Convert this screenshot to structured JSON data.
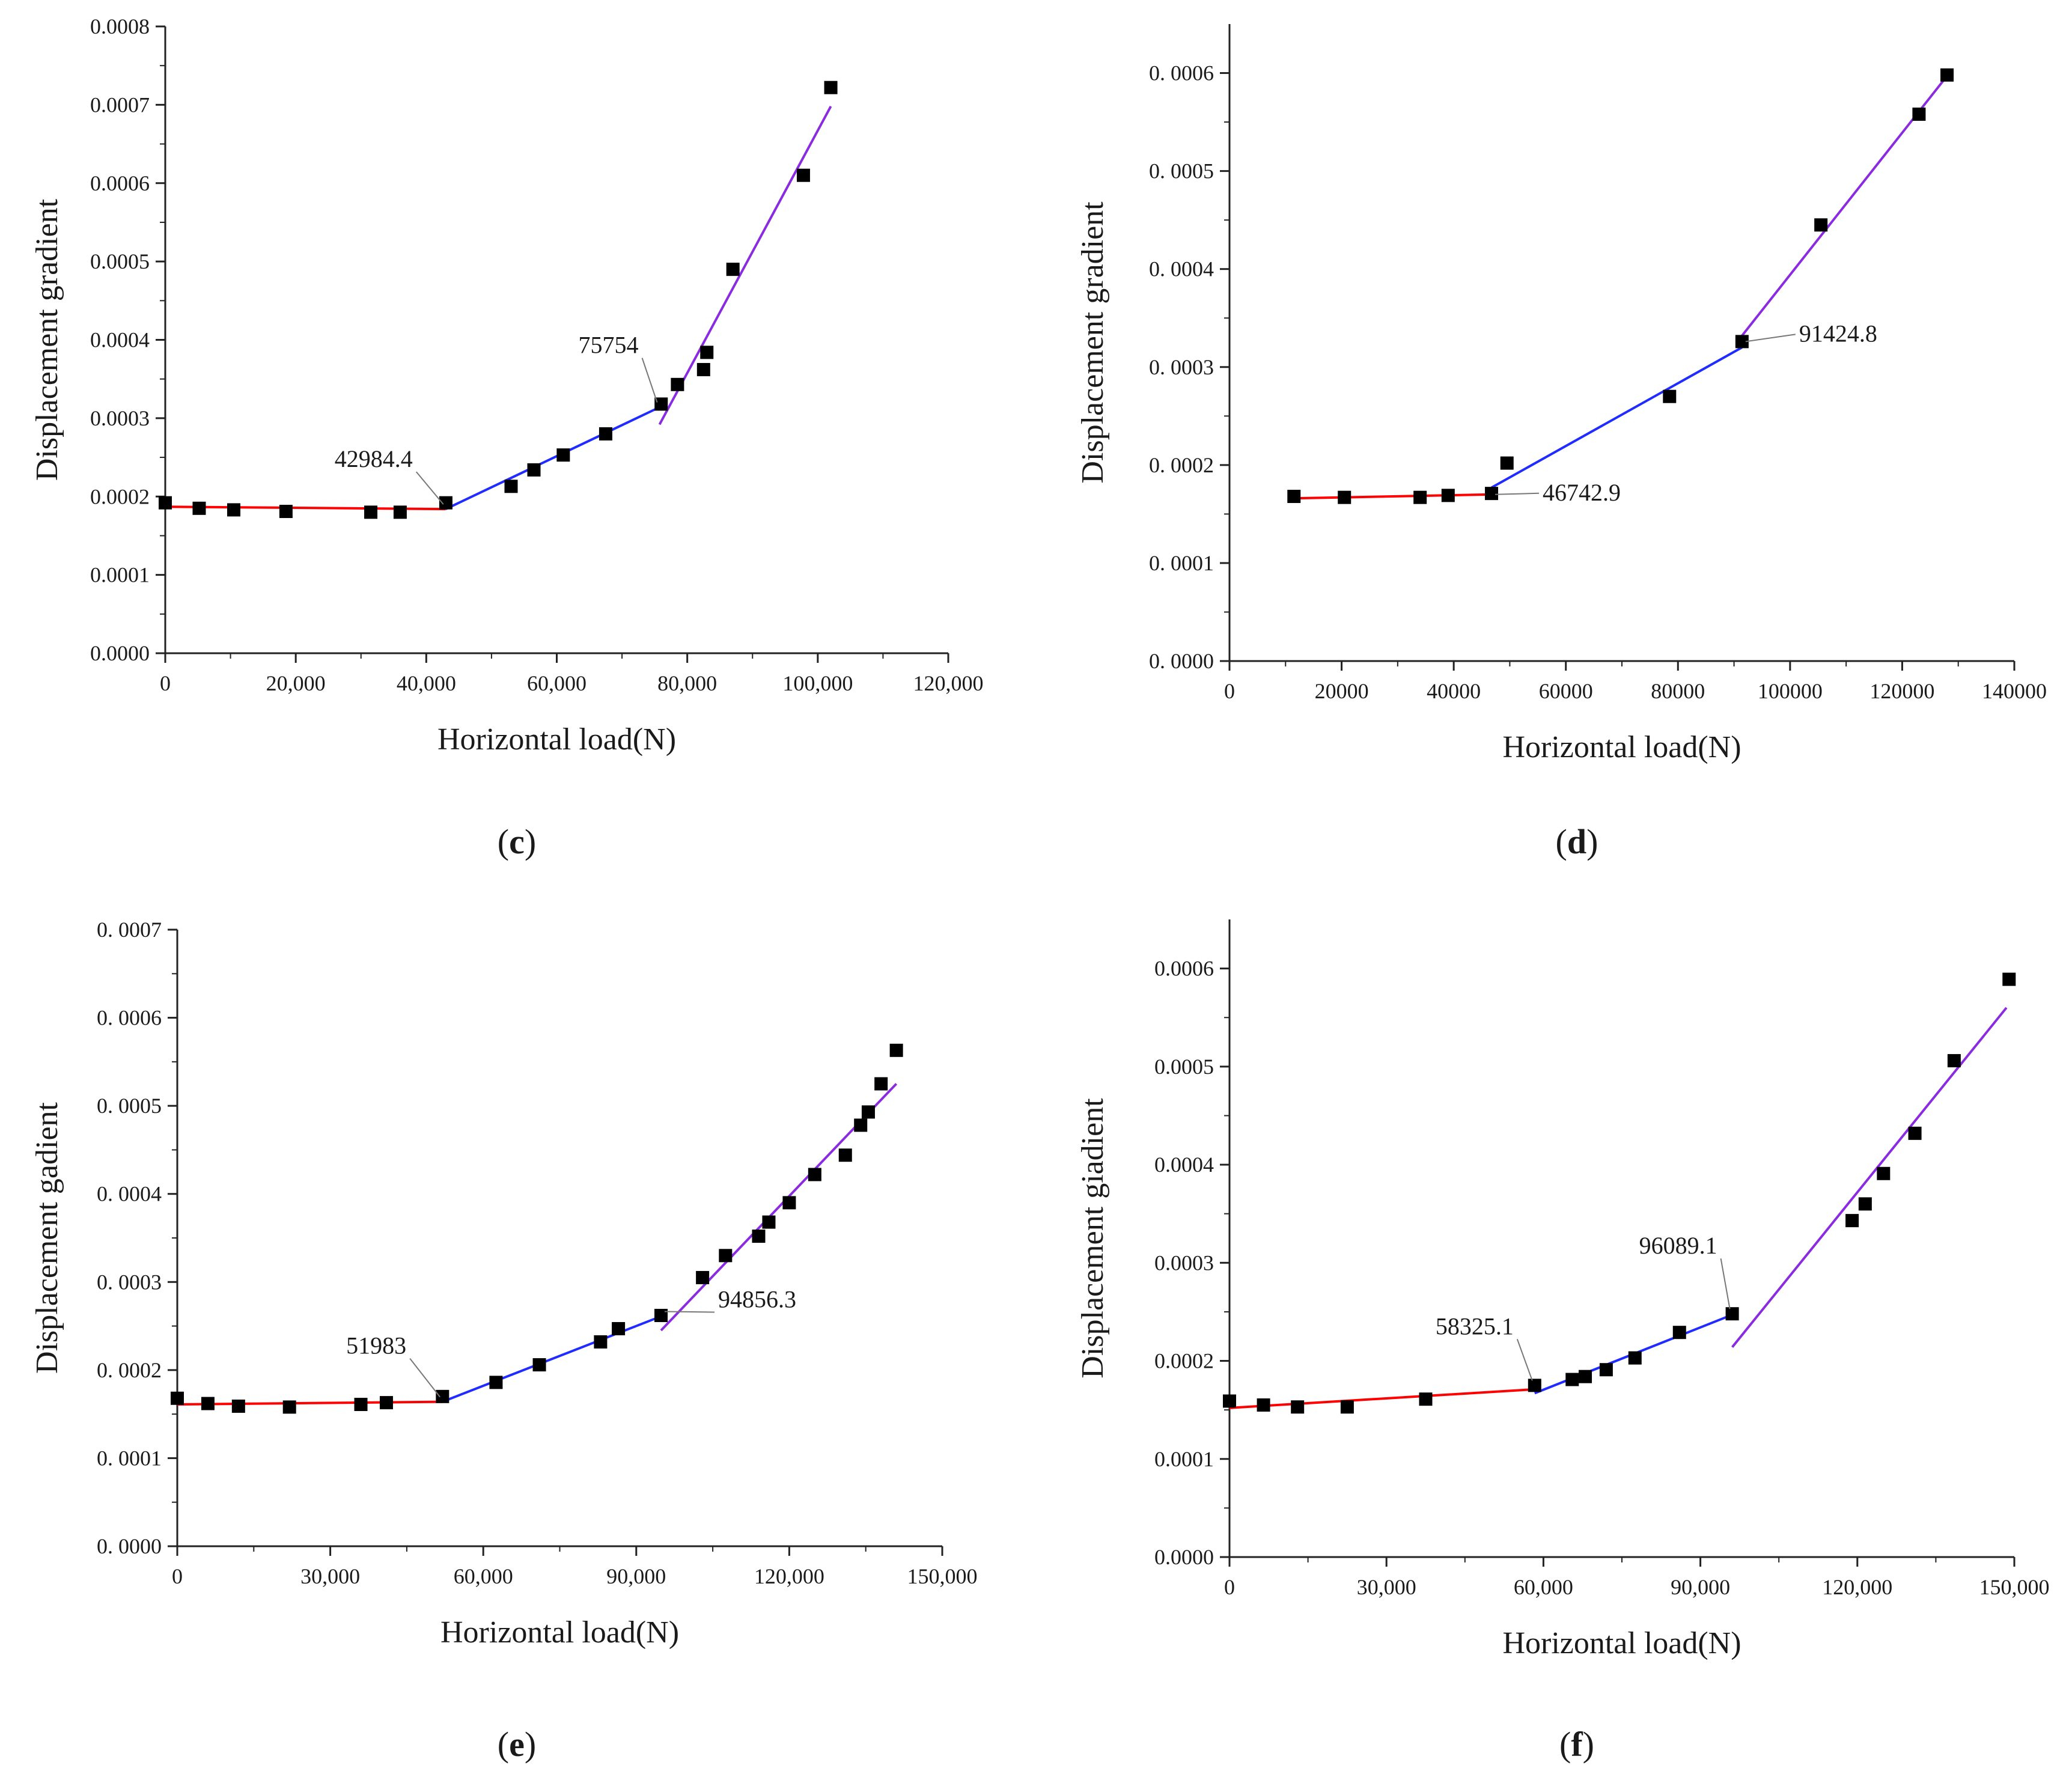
{
  "colors": {
    "segment1": "#ff0000",
    "segment2": "#1f2bff",
    "segment3": "#8a2be2",
    "marker": "#000000",
    "axis": "#222222"
  },
  "chart_data": [
    {
      "type": "scatter",
      "panel_label": {
        "open": "(",
        "letter": "c",
        "close": ")"
      },
      "xlabel": "Horizontal load(N)",
      "ylabel": "Displacement gradient",
      "xlim": [
        0,
        120000
      ],
      "ylim": [
        0,
        0.0008
      ],
      "x_ticks": [
        0,
        20000,
        40000,
        60000,
        80000,
        100000,
        120000
      ],
      "x_tick_labels": [
        "0",
        "20,000",
        "40,000",
        "60,000",
        "80,000",
        "100,000",
        "120,000"
      ],
      "y_ticks": [
        0,
        0.0001,
        0.0002,
        0.0003,
        0.0004,
        0.0005,
        0.0006,
        0.0007,
        0.0008
      ],
      "y_tick_labels": [
        "0.0000",
        "0.0001",
        "0.0002",
        "0.0003",
        "0.0004",
        "0.0005",
        "0.0006",
        "0.0007",
        "0.0008"
      ],
      "points": [
        [
          0,
          0.000192
        ],
        [
          5200,
          0.000185
        ],
        [
          10500,
          0.000183
        ],
        [
          18500,
          0.000181
        ],
        [
          31500,
          0.00018
        ],
        [
          36000,
          0.00018
        ],
        [
          43000,
          0.000192
        ],
        [
          53000,
          0.000213
        ],
        [
          56500,
          0.000234
        ],
        [
          61000,
          0.000253
        ],
        [
          67500,
          0.00028
        ],
        [
          76000,
          0.000318
        ],
        [
          78500,
          0.000343
        ],
        [
          82500,
          0.000362
        ],
        [
          83000,
          0.000384
        ],
        [
          87000,
          0.00049
        ],
        [
          97800,
          0.00061
        ],
        [
          102000,
          0.000722
        ]
      ],
      "fit_lines": [
        {
          "color": "segment1",
          "x": [
            0,
            42984.4
          ],
          "y": [
            0.000187,
            0.000184
          ]
        },
        {
          "color": "segment2",
          "x": [
            42984.4,
            75754
          ],
          "y": [
            0.000184,
            0.000314
          ]
        },
        {
          "color": "segment3",
          "x": [
            75754,
            102000
          ],
          "y": [
            0.000292,
            0.000698
          ]
        }
      ],
      "annotations": [
        {
          "text": "42984.4",
          "x": 42984.4,
          "y": 0.000184
        },
        {
          "text": "75754",
          "x": 75754,
          "y": 0.000314
        }
      ]
    },
    {
      "type": "scatter",
      "panel_label": {
        "open": "(",
        "letter": "d",
        "close": ")"
      },
      "xlabel": "Horizontal load(N)",
      "ylabel": "Displacement gradient",
      "xlim": [
        0,
        140000
      ],
      "ylim": [
        0,
        0.00065
      ],
      "x_ticks": [
        0,
        20000,
        40000,
        60000,
        80000,
        100000,
        120000,
        140000
      ],
      "x_tick_labels": [
        "0",
        "20000",
        "40000",
        "60000",
        "80000",
        "100000",
        "120000",
        "140000"
      ],
      "y_ticks": [
        0,
        0.0001,
        0.0002,
        0.0003,
        0.0004,
        0.0005,
        0.0006
      ],
      "y_tick_labels": [
        "0. 0000",
        "0. 0001",
        "0. 0002",
        "0. 0003",
        "0. 0004",
        "0. 0005",
        "0. 0006"
      ],
      "points": [
        [
          11500,
          0.000168
        ],
        [
          20500,
          0.000167
        ],
        [
          34000,
          0.000167
        ],
        [
          39000,
          0.000169
        ],
        [
          46742.9,
          0.000171
        ],
        [
          49500,
          0.000202
        ],
        [
          78500,
          0.00027
        ],
        [
          91424.8,
          0.000326
        ],
        [
          105500,
          0.000445
        ],
        [
          123000,
          0.000558
        ],
        [
          128000,
          0.000598
        ]
      ],
      "fit_lines": [
        {
          "color": "segment1",
          "x": [
            11500,
            46742.9
          ],
          "y": [
            0.000166,
            0.00017
          ]
        },
        {
          "color": "segment2",
          "x": [
            46742.9,
            91424.8
          ],
          "y": [
            0.000177,
            0.00032
          ]
        },
        {
          "color": "segment3",
          "x": [
            91424.8,
            128000
          ],
          "y": [
            0.000332,
            0.000597
          ]
        }
      ],
      "annotations": [
        {
          "text": "91424.8",
          "x": 91424.8,
          "y": 0.000326
        },
        {
          "text": "46742.9",
          "x": 46742.9,
          "y": 0.00017
        }
      ]
    },
    {
      "type": "scatter",
      "panel_label": {
        "open": "(",
        "letter": "e",
        "close": ")"
      },
      "xlabel": "Horizontal load(N)",
      "ylabel": "Displacement gadient",
      "xlim": [
        0,
        150000
      ],
      "ylim": [
        0,
        0.0007
      ],
      "x_ticks": [
        0,
        30000,
        60000,
        90000,
        120000,
        150000
      ],
      "x_tick_labels": [
        "0",
        "30,000",
        "60,000",
        "90,000",
        "120,000",
        "150,000"
      ],
      "y_ticks": [
        0,
        0.0001,
        0.0002,
        0.0003,
        0.0004,
        0.0005,
        0.0006,
        0.0007
      ],
      "y_tick_labels": [
        "0. 0000",
        "0. 0001",
        "0. 0002",
        "0. 0003",
        "0. 0004",
        "0. 0005",
        "0. 0006",
        "0. 0007"
      ],
      "points": [
        [
          0,
          0.000168
        ],
        [
          6000,
          0.000162
        ],
        [
          12000,
          0.000159
        ],
        [
          22000,
          0.000158
        ],
        [
          36000,
          0.000161
        ],
        [
          41000,
          0.000163
        ],
        [
          52000,
          0.00017
        ],
        [
          62500,
          0.000186
        ],
        [
          71000,
          0.000206
        ],
        [
          83000,
          0.000232
        ],
        [
          86500,
          0.000247
        ],
        [
          94856.3,
          0.000262
        ],
        [
          103000,
          0.000305
        ],
        [
          107500,
          0.00033
        ],
        [
          114000,
          0.000352
        ],
        [
          116000,
          0.000368
        ],
        [
          120000,
          0.00039
        ],
        [
          125000,
          0.000422
        ],
        [
          131000,
          0.000444
        ],
        [
          134000,
          0.000478
        ],
        [
          135500,
          0.000493
        ],
        [
          138000,
          0.000525
        ],
        [
          141000,
          0.000563
        ]
      ],
      "fit_lines": [
        {
          "color": "segment1",
          "x": [
            0,
            51983
          ],
          "y": [
            0.000161,
            0.000164
          ]
        },
        {
          "color": "segment2",
          "x": [
            51983,
            94856.3
          ],
          "y": [
            0.000164,
            0.000261
          ]
        },
        {
          "color": "segment3",
          "x": [
            94856.3,
            141000
          ],
          "y": [
            0.000245,
            0.000525
          ]
        }
      ],
      "annotations": [
        {
          "text": "51983",
          "x": 51983,
          "y": 0.000164
        },
        {
          "text": "94856.3",
          "x": 94856.3,
          "y": 0.000261
        }
      ]
    },
    {
      "type": "scatter",
      "panel_label": {
        "open": "(",
        "letter": "f",
        "close": ")"
      },
      "xlabel": "Horizontal load(N)",
      "ylabel": "Displacement giadient",
      "xlim": [
        0,
        150000
      ],
      "ylim": [
        0,
        0.00065
      ],
      "x_ticks": [
        0,
        30000,
        60000,
        90000,
        120000,
        150000
      ],
      "x_tick_labels": [
        "0",
        "30,000",
        "60,000",
        "90,000",
        "120,000",
        "150,000"
      ],
      "y_ticks": [
        0,
        0.0001,
        0.0002,
        0.0003,
        0.0004,
        0.0005,
        0.0006
      ],
      "y_tick_labels": [
        "0.0000",
        "0.0001",
        "0.0002",
        "0.0003",
        "0.0004",
        "0.0005",
        "0.0006"
      ],
      "points": [
        [
          0,
          0.000159
        ],
        [
          6500,
          0.000155
        ],
        [
          13000,
          0.000153
        ],
        [
          22500,
          0.000153
        ],
        [
          37500,
          0.000161
        ],
        [
          58325.1,
          0.000175
        ],
        [
          65500,
          0.000181
        ],
        [
          68000,
          0.000184
        ],
        [
          72000,
          0.000191
        ],
        [
          77500,
          0.000203
        ],
        [
          86000,
          0.000229
        ],
        [
          96089.1,
          0.000248
        ],
        [
          119000,
          0.000343
        ],
        [
          121500,
          0.00036
        ],
        [
          125000,
          0.000391
        ],
        [
          131000,
          0.000432
        ],
        [
          138500,
          0.000506
        ],
        [
          149000,
          0.000589
        ]
      ],
      "fit_lines": [
        {
          "color": "segment1",
          "x": [
            0,
            58325.1
          ],
          "y": [
            0.000152,
            0.000171
          ]
        },
        {
          "color": "segment2",
          "x": [
            58325.1,
            96089.1
          ],
          "y": [
            0.000167,
            0.000247
          ]
        },
        {
          "color": "segment3",
          "x": [
            96089.1,
            148500
          ],
          "y": [
            0.000214,
            0.00056
          ]
        }
      ],
      "annotations": [
        {
          "text": "58325.1",
          "x": 58325.1,
          "y": 0.000175
        },
        {
          "text": "96089.1",
          "x": 96089.1,
          "y": 0.000248
        }
      ]
    }
  ]
}
